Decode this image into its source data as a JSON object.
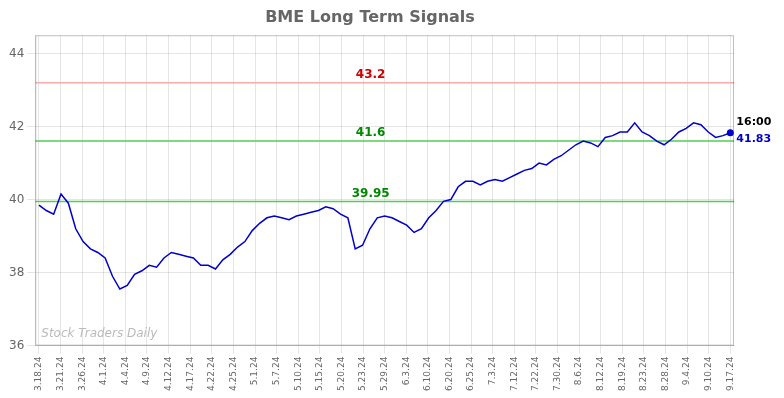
{
  "chart_data": {
    "type": "line",
    "title": "BME Long Term Signals",
    "x": [
      0,
      1,
      2,
      3,
      4,
      5,
      6,
      7,
      8,
      9,
      10,
      11,
      12,
      13,
      14,
      15,
      16,
      17,
      18,
      19,
      20,
      21,
      22,
      23,
      24,
      25,
      26,
      27,
      28,
      29,
      30,
      31,
      32,
      33,
      34,
      35,
      36,
      37,
      38,
      39,
      40,
      41,
      42,
      43,
      44,
      45,
      46,
      47,
      48,
      49,
      50,
      51,
      52,
      53,
      54,
      55,
      56,
      57,
      58,
      59,
      60,
      61,
      62,
      63,
      64,
      65,
      66,
      67,
      68,
      69,
      70,
      71,
      72,
      73,
      74,
      75,
      76,
      77,
      78,
      79,
      80,
      81,
      82,
      83,
      84,
      85,
      86,
      87,
      88,
      89,
      90,
      91,
      92,
      93,
      94
    ],
    "values": [
      39.85,
      39.7,
      39.6,
      40.15,
      39.9,
      39.2,
      38.85,
      38.65,
      38.55,
      38.4,
      37.9,
      37.55,
      37.65,
      37.95,
      38.05,
      38.2,
      38.15,
      38.4,
      38.55,
      38.5,
      38.45,
      38.4,
      38.2,
      38.2,
      38.1,
      38.35,
      38.5,
      38.7,
      38.85,
      39.15,
      39.35,
      39.5,
      39.55,
      39.5,
      39.45,
      39.55,
      39.6,
      39.65,
      39.7,
      39.8,
      39.75,
      39.6,
      39.5,
      38.65,
      38.75,
      39.2,
      39.5,
      39.55,
      39.5,
      39.4,
      39.3,
      39.1,
      39.2,
      39.5,
      39.7,
      39.95,
      40.0,
      40.35,
      40.5,
      40.5,
      40.4,
      40.5,
      40.55,
      40.5,
      40.6,
      40.7,
      40.8,
      40.85,
      41.0,
      40.95,
      41.1,
      41.2,
      41.35,
      41.5,
      41.6,
      41.55,
      41.45,
      41.7,
      41.75,
      41.85,
      41.85,
      42.1,
      41.85,
      41.75,
      41.6,
      41.5,
      41.65,
      41.85,
      41.95,
      42.1,
      42.05,
      41.85,
      41.7,
      41.75,
      41.83
    ],
    "color": "#0000cc",
    "xlim": [
      -0.5,
      94.5
    ],
    "xticks": [
      {
        "value": 0,
        "label": "3.18.24"
      },
      {
        "value": 2.9375,
        "label": "3.21.24"
      },
      {
        "value": 5.875,
        "label": "3.26.24"
      },
      {
        "value": 8.8125,
        "label": "4.1.24"
      },
      {
        "value": 11.75,
        "label": "4.4.24"
      },
      {
        "value": 14.6875,
        "label": "4.9.24"
      },
      {
        "value": 17.625,
        "label": "4.12.24"
      },
      {
        "value": 20.5625,
        "label": "4.17.24"
      },
      {
        "value": 23.5,
        "label": "4.22.24"
      },
      {
        "value": 26.4375,
        "label": "4.25.24"
      },
      {
        "value": 29.375,
        "label": "5.1.24"
      },
      {
        "value": 32.3125,
        "label": "5.7.24"
      },
      {
        "value": 35.25,
        "label": "5.10.24"
      },
      {
        "value": 38.1875,
        "label": "5.15.24"
      },
      {
        "value": 41.125,
        "label": "5.20.24"
      },
      {
        "value": 44.0625,
        "label": "5.23.24"
      },
      {
        "value": 47,
        "label": "5.29.24"
      },
      {
        "value": 49.9375,
        "label": "6.3.24"
      },
      {
        "value": 52.875,
        "label": "6.10.24"
      },
      {
        "value": 55.8125,
        "label": "6.20.24"
      },
      {
        "value": 58.75,
        "label": "6.25.24"
      },
      {
        "value": 61.6875,
        "label": "7.3.24"
      },
      {
        "value": 64.625,
        "label": "7.12.24"
      },
      {
        "value": 67.5625,
        "label": "7.22.24"
      },
      {
        "value": 70.5,
        "label": "7.30.24"
      },
      {
        "value": 73.4375,
        "label": "8.6.24"
      },
      {
        "value": 76.375,
        "label": "8.12.24"
      },
      {
        "value": 79.3125,
        "label": "8.19.24"
      },
      {
        "value": 82.25,
        "label": "8.23.24"
      },
      {
        "value": 85.1875,
        "label": "8.28.24"
      },
      {
        "value": 88.125,
        "label": "9.4.24"
      },
      {
        "value": 91.0625,
        "label": "9.10.24"
      },
      {
        "value": 94,
        "label": "9.17.24"
      }
    ],
    "ylim": [
      36,
      44.5
    ],
    "yticks": [
      36,
      38,
      40,
      42,
      44
    ],
    "grid": true,
    "annotations": [
      {
        "type": "hline",
        "y": 43.2,
        "color": "#ffaaaa",
        "text": "43.2",
        "text_color": "#cc0000"
      },
      {
        "type": "hline",
        "y": 41.6,
        "color": "#55cc55",
        "text": "41.6",
        "text_color": "#008800"
      },
      {
        "type": "hline",
        "y": 39.95,
        "color": "#55cc55",
        "text": "39.95",
        "text_color": "#008800"
      },
      {
        "type": "point",
        "x": 94,
        "y": 41.83,
        "color": "#0000cc",
        "texts": [
          {
            "text": "16:00",
            "color": "#000000"
          },
          {
            "text": "41.83",
            "color": "#0000cc"
          }
        ]
      },
      {
        "type": "watermark",
        "text": "Stock Traders Daily",
        "color": "#bbbbbb"
      }
    ]
  }
}
